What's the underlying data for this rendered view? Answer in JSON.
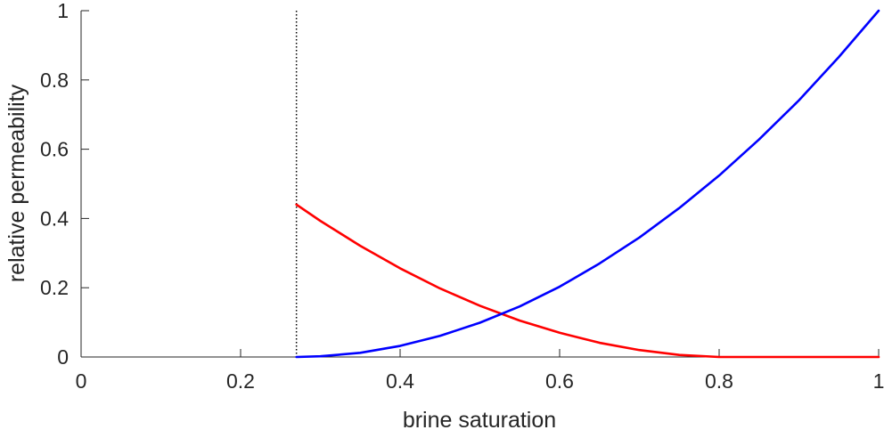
{
  "chart_data": {
    "type": "line",
    "xlabel": "brine saturation",
    "ylabel": "relative permeability",
    "xlim": [
      0,
      1
    ],
    "ylim": [
      0,
      1
    ],
    "xticks": [
      0,
      0.2,
      0.4,
      0.6,
      0.8,
      1
    ],
    "xtick_labels": [
      "0",
      "0.2",
      "0.4",
      "0.6",
      "0.8",
      "1"
    ],
    "yticks": [
      0,
      0.2,
      0.4,
      0.6,
      0.8,
      1
    ],
    "ytick_labels": [
      "0",
      "0.2",
      "0.4",
      "0.6",
      "0.8",
      "1"
    ],
    "grid": false,
    "legend": "none",
    "vertical_reference_line": {
      "x": 0.27,
      "style": "dotted",
      "color": "#000000"
    },
    "series": [
      {
        "color": "#ff0000",
        "x": [
          0.27,
          0.3,
          0.35,
          0.4,
          0.45,
          0.5,
          0.55,
          0.6,
          0.65,
          0.7,
          0.75,
          0.8,
          0.85,
          0.9,
          0.95,
          1.0
        ],
        "y": [
          0.44,
          0.393,
          0.321,
          0.256,
          0.198,
          0.148,
          0.105,
          0.07,
          0.041,
          0.02,
          0.006,
          0.0,
          0.0,
          0.0,
          0.0,
          0.0
        ]
      },
      {
        "color": "#0000ff",
        "x": [
          0.27,
          0.3,
          0.35,
          0.4,
          0.45,
          0.5,
          0.55,
          0.6,
          0.65,
          0.7,
          0.75,
          0.8,
          0.85,
          0.9,
          0.95,
          1.0
        ],
        "y": [
          0.0,
          0.002,
          0.012,
          0.032,
          0.061,
          0.099,
          0.146,
          0.203,
          0.27,
          0.345,
          0.43,
          0.524,
          0.628,
          0.741,
          0.866,
          1.0
        ]
      }
    ]
  }
}
